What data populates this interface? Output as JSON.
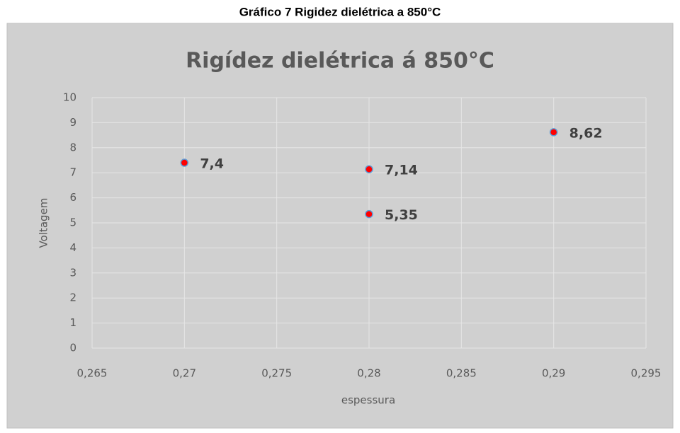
{
  "chart_data": {
    "type": "scatter",
    "caption": "Gráfico 7 Rigidez dielétrica a 850°C",
    "title": "Rigídez dielétrica á 850°C",
    "x_label": "espessura",
    "y_label": "Voltagem",
    "x": [
      0.27,
      0.28,
      0.28,
      0.29
    ],
    "values": [
      7.4,
      7.14,
      5.35,
      8.62
    ],
    "value_labels": [
      "7,4",
      "7,14",
      "5,35",
      "8,62"
    ],
    "color": "#ff0000",
    "edge_color": "#5b9bd5",
    "xlim": [
      0.265,
      0.295
    ],
    "xticks": [
      {
        "value": 0.265,
        "label": "0,265"
      },
      {
        "value": 0.27,
        "label": "0,27"
      },
      {
        "value": 0.275,
        "label": "0,275"
      },
      {
        "value": 0.28,
        "label": "0,28"
      },
      {
        "value": 0.285,
        "label": "0,285"
      },
      {
        "value": 0.29,
        "label": "0,29"
      },
      {
        "value": 0.295,
        "label": "0,295"
      }
    ],
    "ylim": [
      0,
      10
    ],
    "yticks": [
      0,
      1,
      2,
      3,
      4,
      5,
      6,
      7,
      8,
      9,
      10
    ],
    "grid": true
  }
}
